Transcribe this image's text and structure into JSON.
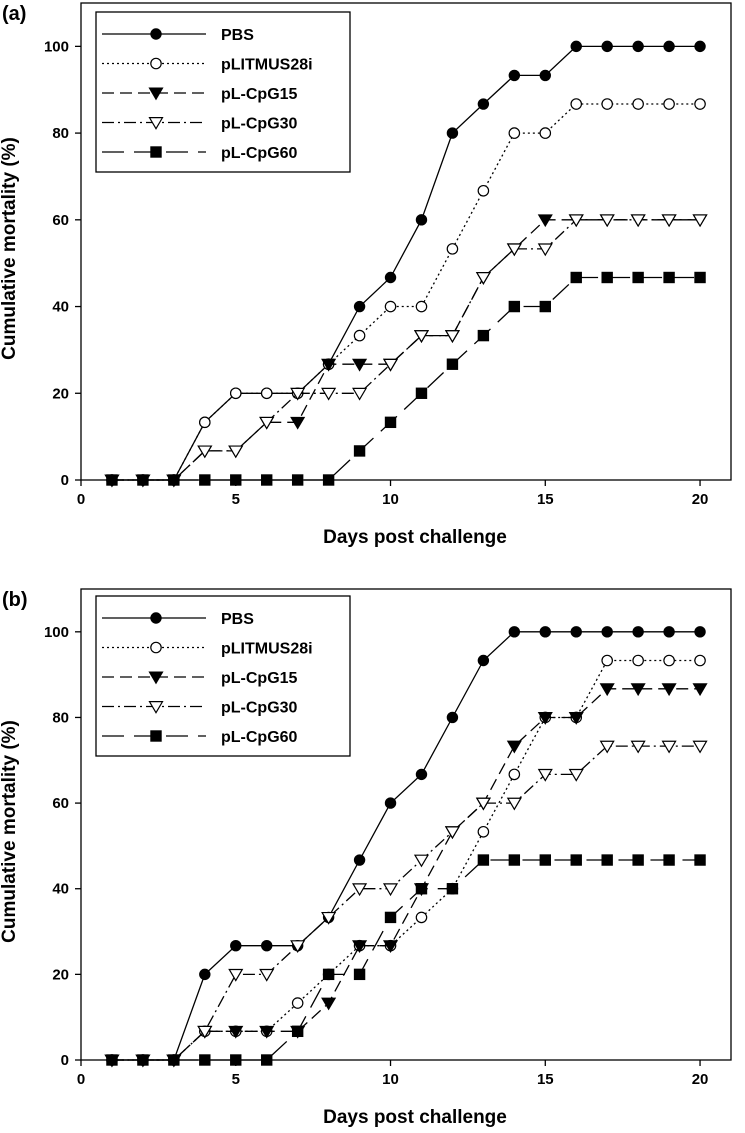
{
  "chart_data": [
    {
      "type": "line",
      "panel_label": "(a)",
      "xlabel": "Days post challenge",
      "ylabel": "Cumulative mortality (%)",
      "xlim": [
        0,
        21
      ],
      "ylim": [
        0,
        110
      ],
      "xticks": [
        0,
        5,
        10,
        15,
        20
      ],
      "yticks": [
        0,
        20,
        40,
        60,
        80,
        100
      ],
      "grid": false,
      "legend_position": "top-left",
      "x": [
        1,
        2,
        3,
        4,
        5,
        6,
        7,
        8,
        9,
        10,
        11,
        12,
        13,
        14,
        15,
        16,
        17,
        18,
        19,
        20
      ],
      "series": [
        {
          "name": "PBS",
          "marker": "filled-circle",
          "dash": "solid",
          "values": [
            0,
            0,
            0,
            13.3,
            20,
            20,
            20,
            26.7,
            40,
            46.7,
            60,
            80,
            86.7,
            93.3,
            93.3,
            100,
            100,
            100,
            100,
            100
          ]
        },
        {
          "name": "pLITMUS28i",
          "marker": "open-circle",
          "dash": "dotted",
          "values": [
            0,
            0,
            0,
            13.3,
            20,
            20,
            20,
            26.7,
            33.3,
            40,
            40,
            53.3,
            66.7,
            80,
            80,
            86.7,
            86.7,
            86.7,
            86.7,
            86.7
          ]
        },
        {
          "name": "pL-CpG15",
          "marker": "filled-triangle-down",
          "dash": "dashed",
          "values": [
            0,
            0,
            0,
            6.7,
            6.7,
            13.3,
            13.3,
            26.7,
            26.7,
            26.7,
            33.3,
            33.3,
            46.7,
            53.3,
            60,
            60,
            60,
            60,
            60,
            60
          ]
        },
        {
          "name": "pL-CpG30",
          "marker": "open-triangle-down",
          "dash": "dash-dot",
          "values": [
            0,
            0,
            0,
            6.7,
            6.7,
            13.3,
            20,
            20,
            20,
            26.7,
            33.3,
            33.3,
            46.7,
            53.3,
            53.3,
            60,
            60,
            60,
            60,
            60
          ]
        },
        {
          "name": "pL-CpG60",
          "marker": "filled-square",
          "dash": "long-dash",
          "values": [
            0,
            0,
            0,
            0,
            0,
            0,
            0,
            0,
            6.7,
            13.3,
            20,
            26.7,
            33.3,
            40,
            40,
            46.7,
            46.7,
            46.7,
            46.7,
            46.7
          ]
        }
      ]
    },
    {
      "type": "line",
      "panel_label": "(b)",
      "xlabel": "Days post challenge",
      "ylabel": "Cumulative mortality (%)",
      "xlim": [
        0,
        21
      ],
      "ylim": [
        0,
        110
      ],
      "xticks": [
        0,
        5,
        10,
        15,
        20
      ],
      "yticks": [
        0,
        20,
        40,
        60,
        80,
        100
      ],
      "grid": false,
      "legend_position": "top-left",
      "x": [
        1,
        2,
        3,
        4,
        5,
        6,
        7,
        8,
        9,
        10,
        11,
        12,
        13,
        14,
        15,
        16,
        17,
        18,
        19,
        20
      ],
      "series": [
        {
          "name": "PBS",
          "marker": "filled-circle",
          "dash": "solid",
          "values": [
            0,
            0,
            0,
            20,
            26.7,
            26.7,
            26.7,
            33.3,
            46.7,
            60,
            66.7,
            80,
            93.3,
            100,
            100,
            100,
            100,
            100,
            100,
            100
          ]
        },
        {
          "name": "pLITMUS28i",
          "marker": "open-circle",
          "dash": "dotted",
          "values": [
            0,
            0,
            0,
            6.7,
            6.7,
            6.7,
            13.3,
            20,
            26.7,
            26.7,
            33.3,
            40,
            53.3,
            66.7,
            80,
            80,
            93.3,
            93.3,
            93.3,
            93.3
          ]
        },
        {
          "name": "pL-CpG15",
          "marker": "filled-triangle-down",
          "dash": "dashed",
          "values": [
            0,
            0,
            0,
            6.7,
            6.7,
            6.7,
            6.7,
            13.3,
            26.7,
            26.7,
            40,
            53.3,
            60,
            73.3,
            80,
            80,
            86.7,
            86.7,
            86.7,
            86.7
          ]
        },
        {
          "name": "pL-CpG30",
          "marker": "open-triangle-down",
          "dash": "dash-dot",
          "values": [
            0,
            0,
            0,
            6.7,
            20,
            20,
            26.7,
            33.3,
            40,
            40,
            46.7,
            53.3,
            60,
            60,
            66.7,
            66.7,
            73.3,
            73.3,
            73.3,
            73.3
          ]
        },
        {
          "name": "pL-CpG60",
          "marker": "filled-square",
          "dash": "long-dash",
          "values": [
            0,
            0,
            0,
            0,
            0,
            0,
            6.7,
            20,
            20,
            33.3,
            40,
            40,
            46.7,
            46.7,
            46.7,
            46.7,
            46.7,
            46.7,
            46.7,
            46.7
          ]
        }
      ]
    }
  ]
}
